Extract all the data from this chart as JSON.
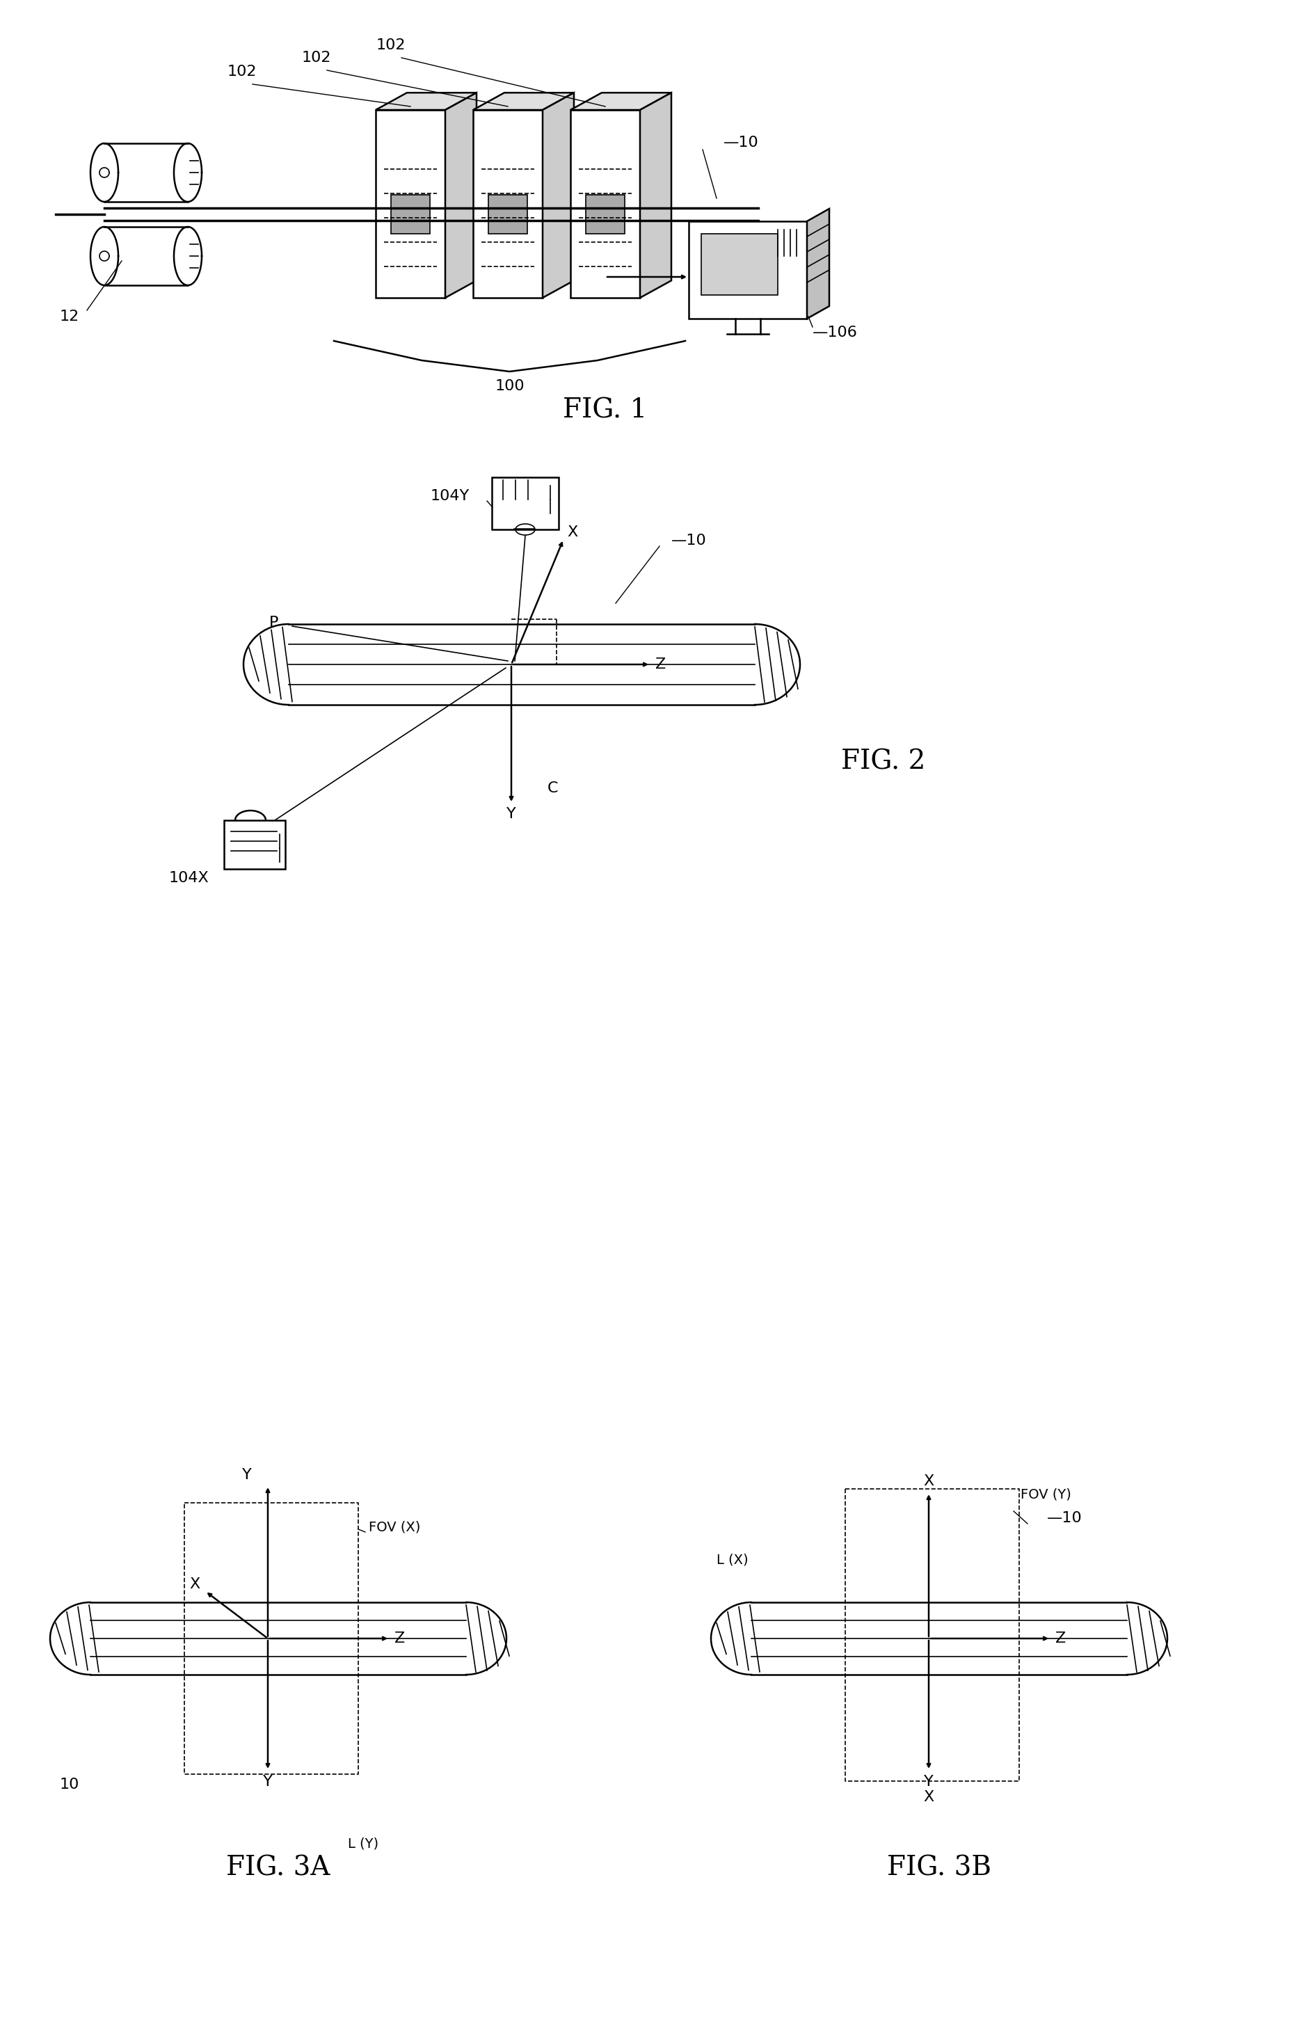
{
  "fig_width": 18.74,
  "fig_height": 29.12,
  "bg_color": "#ffffff",
  "line_color": "#000000",
  "fig1_label": "FIG. 1",
  "fig2_label": "FIG. 2",
  "fig3a_label": "FIG. 3A",
  "fig3b_label": "FIG. 3B",
  "font_size_labels": 14,
  "font_size_figs": 28,
  "font_size_ref": 16
}
